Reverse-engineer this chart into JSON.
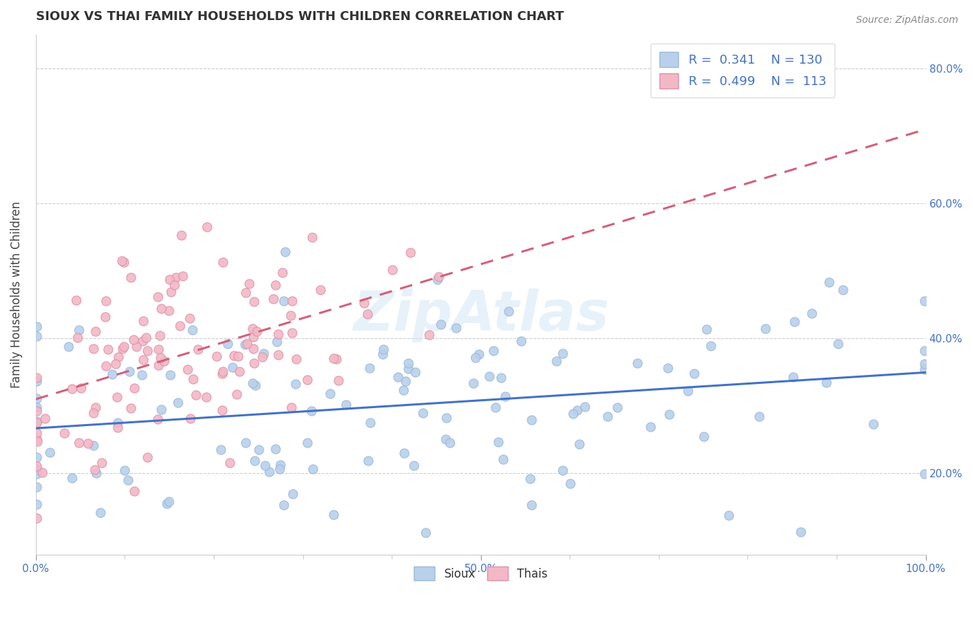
{
  "title": "SIOUX VS THAI FAMILY HOUSEHOLDS WITH CHILDREN CORRELATION CHART",
  "source": "Source: ZipAtlas.com",
  "ylabel": "Family Households with Children",
  "sioux_label": "Sioux",
  "thais_label": "Thais",
  "sioux_color": "#b8d0eb",
  "thais_color": "#f2b8c6",
  "sioux_line_color": "#4472c4",
  "thais_line_color": "#d45f7a",
  "r_sioux": 0.341,
  "n_sioux": 130,
  "r_thais": 0.499,
  "n_thais": 113,
  "background_color": "#ffffff",
  "grid_color": "#cccccc",
  "title_color": "#333333",
  "axis_label_color": "#444444",
  "tick_color": "#4472c4",
  "xlim": [
    0.0,
    1.0
  ],
  "ylim": [
    0.08,
    0.85
  ],
  "sioux_line_style": "-",
  "thais_line_style": "--"
}
